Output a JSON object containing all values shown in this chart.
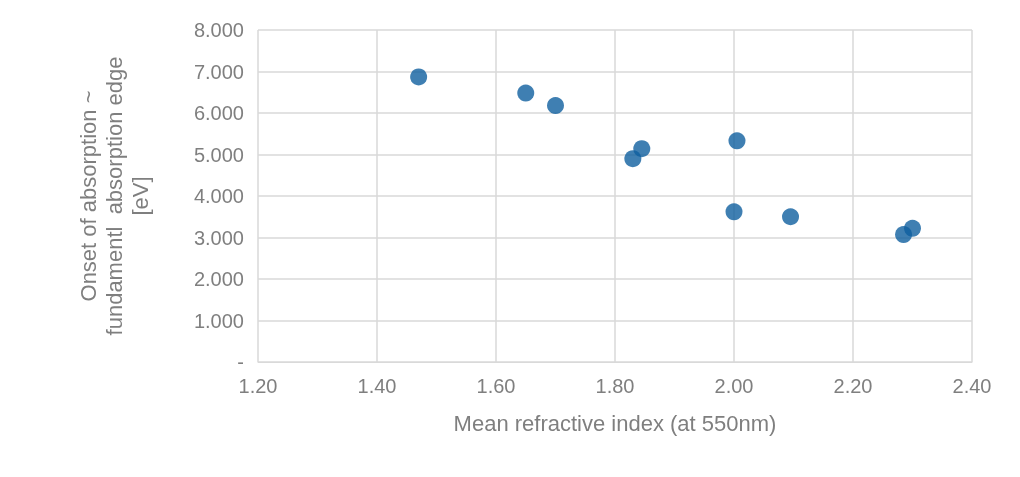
{
  "chart_data": {
    "type": "scatter",
    "xlabel": "Mean refractive index (at 550nm)",
    "ylabel": "Onset of absorption ~\nfundamentl  absorption edge\n[eV]",
    "x": [
      1.47,
      1.65,
      1.7,
      1.83,
      1.845,
      2.005,
      2.0,
      2.095,
      2.285,
      2.3
    ],
    "series": [
      {
        "color": "#0f5f9f",
        "values": [
          6.87,
          6.48,
          6.18,
          4.9,
          5.14,
          5.33,
          3.62,
          3.5,
          3.07,
          3.22
        ]
      }
    ],
    "xlim": [
      1.2,
      2.4
    ],
    "ylim": [
      0,
      8
    ],
    "xticks": [
      {
        "value": 1.2,
        "label": "1.20"
      },
      {
        "value": 1.4,
        "label": "1.40"
      },
      {
        "value": 1.6,
        "label": "1.60"
      },
      {
        "value": 1.8,
        "label": "1.80"
      },
      {
        "value": 2.0,
        "label": "2.00"
      },
      {
        "value": 2.2,
        "label": "2.20"
      },
      {
        "value": 2.4,
        "label": "2.40"
      }
    ],
    "yticks": [
      {
        "value": 0,
        "label": "-"
      },
      {
        "value": 1,
        "label": "1.000"
      },
      {
        "value": 2,
        "label": "2.000"
      },
      {
        "value": 3,
        "label": "3.000"
      },
      {
        "value": 4,
        "label": "4.000"
      },
      {
        "value": 5,
        "label": "5.000"
      },
      {
        "value": 6,
        "label": "6.000"
      },
      {
        "value": 7,
        "label": "7.000"
      },
      {
        "value": 8,
        "label": "8.000"
      }
    ],
    "grid": true,
    "marker": "circle"
  }
}
